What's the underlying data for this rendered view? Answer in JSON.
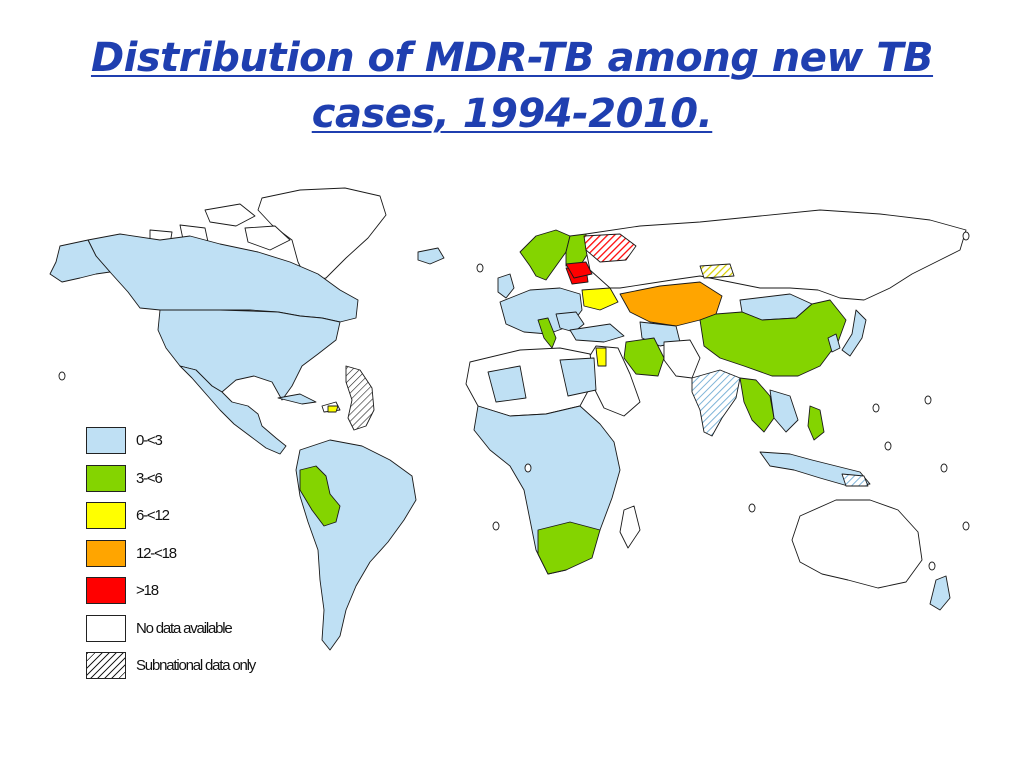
{
  "title": {
    "line1": "Distribution of MDR-TB among new TB ",
    "line2": "cases, 1994-2010."
  },
  "colors": {
    "c0_3": "#bfe0f4",
    "c3_6": "#84d400",
    "c6_12": "#ffff00",
    "c12_18": "#ffa500",
    "c18": "#ff0000",
    "none": "#ffffff",
    "border": "#1a1a1a"
  },
  "legend": [
    {
      "label": "0-<3",
      "color": "#bfe0f4",
      "pattern": false
    },
    {
      "label": "3-<6",
      "color": "#84d400",
      "pattern": false
    },
    {
      "label": "6-<12",
      "color": "#ffff00",
      "pattern": false
    },
    {
      "label": "12-<18",
      "color": "#ffa500",
      "pattern": false
    },
    {
      "label": ">18",
      "color": "#ff0000",
      "pattern": false
    },
    {
      "label": "No data available",
      "color": "#ffffff",
      "pattern": false
    },
    {
      "label": "Subnational data only",
      "color": "#ffffff",
      "pattern": true
    }
  ]
}
